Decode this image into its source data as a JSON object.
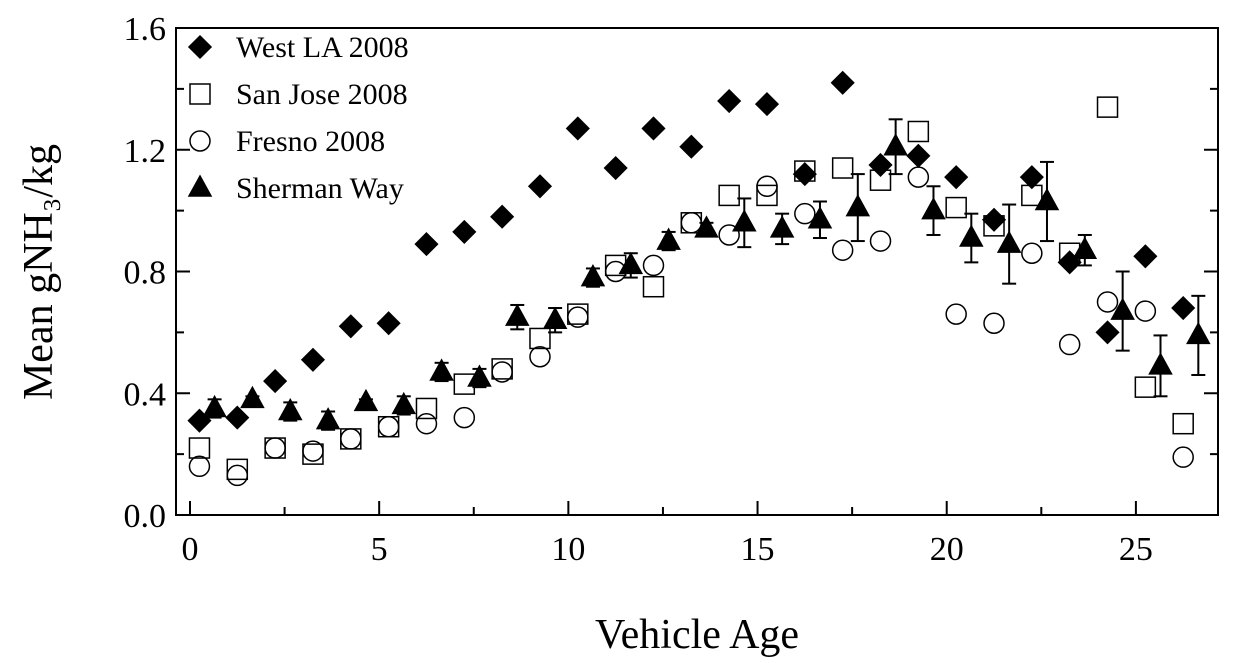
{
  "chart_data": {
    "type": "scatter",
    "xlabel": "Vehicle Age",
    "ylabel": "Mean gNH₃/kg",
    "xlim": [
      -0.37,
      27.17
    ],
    "ylim": [
      0,
      1.6
    ],
    "xticks": [
      0,
      5,
      10,
      15,
      20,
      25
    ],
    "xminor": [
      2.5,
      7.5,
      12.5,
      17.5,
      22.5
    ],
    "yticks": [
      {
        "value": 0,
        "label": "0.0"
      },
      0.4,
      0.8,
      1.2,
      1.6
    ],
    "yminor": [
      0.2,
      0.6,
      1.0,
      1.4
    ],
    "legend": "upper left",
    "series": [
      {
        "name": "West LA 2008",
        "color": "#000000",
        "marker": "diamond",
        "filled": true,
        "x": [
          0.25,
          1.25,
          2.25,
          3.25,
          4.25,
          5.25,
          6.25,
          7.25,
          8.25,
          9.25,
          10.25,
          11.25,
          12.25,
          13.25,
          14.25,
          15.25,
          16.25,
          17.25,
          18.25,
          19.25,
          20.25,
          21.25,
          22.25,
          23.25,
          24.25,
          25.25,
          26.25
        ],
        "values": [
          0.31,
          0.32,
          0.44,
          0.51,
          0.62,
          0.63,
          0.89,
          0.93,
          0.98,
          1.08,
          1.27,
          1.14,
          1.27,
          1.21,
          1.36,
          1.35,
          1.12,
          1.42,
          1.15,
          1.18,
          1.11,
          0.97,
          1.11,
          0.83,
          0.6,
          0.85,
          0.68
        ]
      },
      {
        "name": "San Jose 2008",
        "color": "#000000",
        "marker": "square",
        "filled": false,
        "x": [
          0.25,
          1.25,
          2.25,
          3.25,
          4.25,
          5.25,
          6.25,
          7.25,
          8.25,
          9.25,
          10.25,
          11.25,
          12.25,
          13.25,
          14.25,
          15.25,
          16.25,
          17.25,
          18.25,
          19.25,
          20.25,
          21.25,
          22.25,
          23.25,
          24.25,
          25.25,
          26.25
        ],
        "values": [
          0.22,
          0.15,
          0.22,
          0.2,
          0.25,
          0.29,
          0.35,
          0.43,
          0.48,
          0.58,
          0.66,
          0.82,
          0.75,
          0.96,
          1.05,
          1.05,
          1.13,
          1.14,
          1.1,
          1.26,
          1.01,
          0.95,
          1.05,
          0.86,
          1.34,
          0.42,
          0.3
        ]
      },
      {
        "name": "Fresno 2008",
        "color": "#000000",
        "marker": "circle",
        "filled": false,
        "x": [
          0.25,
          1.25,
          2.25,
          3.25,
          4.25,
          5.25,
          6.25,
          7.25,
          8.25,
          9.25,
          10.25,
          11.25,
          12.25,
          13.25,
          14.25,
          15.25,
          16.25,
          17.25,
          18.25,
          19.25,
          20.25,
          21.25,
          22.25,
          23.25,
          24.25,
          25.25,
          26.25
        ],
        "values": [
          0.16,
          0.13,
          0.22,
          0.21,
          0.25,
          0.29,
          0.3,
          0.32,
          0.47,
          0.52,
          0.65,
          0.8,
          0.82,
          0.96,
          0.92,
          1.08,
          0.99,
          0.87,
          0.9,
          1.11,
          0.66,
          0.63,
          0.86,
          0.56,
          0.7,
          0.67,
          0.19
        ]
      },
      {
        "name": "Sherman Way",
        "color": "#000000",
        "marker": "triangle",
        "filled": true,
        "x": [
          0.65,
          1.65,
          2.65,
          3.65,
          4.65,
          5.65,
          6.65,
          7.65,
          8.65,
          9.65,
          10.65,
          11.65,
          12.65,
          13.65,
          14.65,
          15.65,
          16.65,
          17.65,
          18.65,
          19.65,
          20.65,
          21.65,
          22.65,
          23.65,
          24.65,
          25.65,
          26.65
        ],
        "values": [
          0.35,
          0.38,
          0.34,
          0.31,
          0.37,
          0.36,
          0.47,
          0.45,
          0.65,
          0.64,
          0.78,
          0.82,
          0.9,
          0.94,
          0.96,
          0.94,
          0.97,
          1.01,
          1.21,
          1.0,
          0.91,
          0.89,
          1.03,
          0.87,
          0.67,
          0.49,
          0.59
        ],
        "errors": [
          0.03,
          0.01,
          0.03,
          0.03,
          0.01,
          0.03,
          0.03,
          0.03,
          0.04,
          0.04,
          0.03,
          0.04,
          0.03,
          0.02,
          0.08,
          0.05,
          0.06,
          0.11,
          0.09,
          0.08,
          0.08,
          0.13,
          0.13,
          0.05,
          0.13,
          0.1,
          0.13
        ]
      }
    ]
  }
}
